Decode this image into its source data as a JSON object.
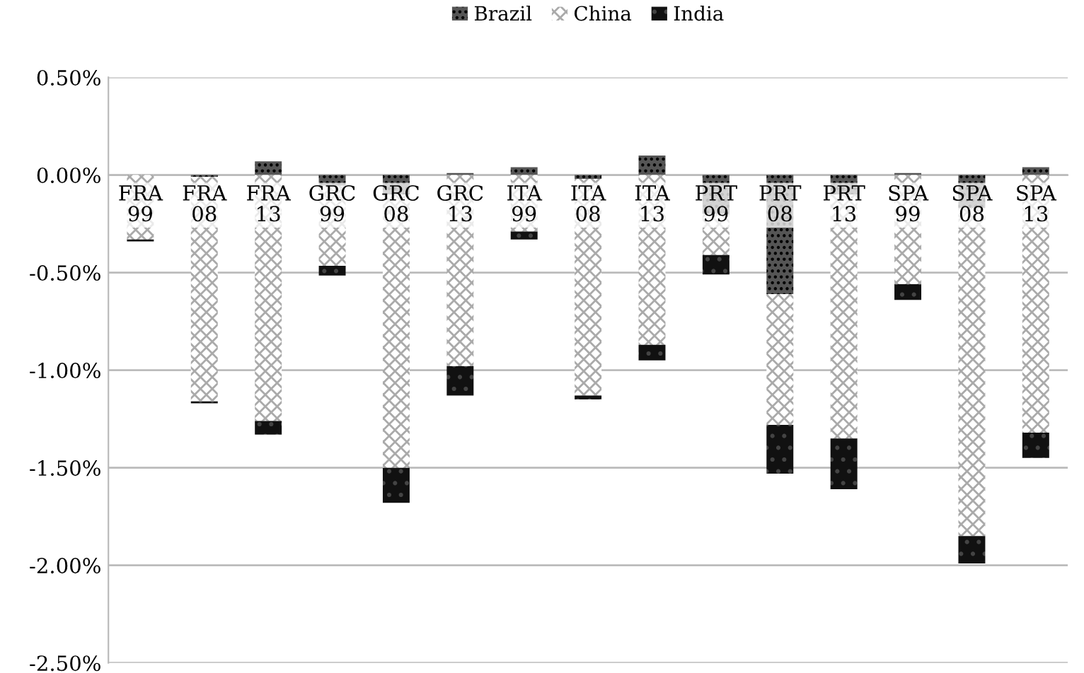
{
  "chart_data": {
    "type": "bar",
    "stacked": true,
    "categories": [
      "FRA\n99",
      "FRA\n08",
      "FRA\n13",
      "GRC\n99",
      "GRC\n08",
      "GRC\n13",
      "ITA\n99",
      "ITA\n08",
      "ITA\n13",
      "PRT\n99",
      "PRT\n08",
      "PRT\n13",
      "SPA\n99",
      "SPA\n08",
      "SPA\n13"
    ],
    "series": [
      {
        "name": "Brazil",
        "color": "#555555",
        "values": [
          0.0,
          -0.01,
          0.07,
          -0.055,
          -0.1,
          0.01,
          0.04,
          -0.02,
          0.1,
          -0.2,
          -0.61,
          -0.1,
          0.01,
          -0.17,
          0.04
        ]
      },
      {
        "name": "China",
        "color": "#aaaaaa",
        "values": [
          -0.33,
          -1.15,
          -1.26,
          -0.41,
          -1.4,
          -0.98,
          -0.29,
          -1.11,
          -0.87,
          -0.21,
          -0.67,
          -1.25,
          -0.56,
          -1.68,
          -1.32
        ]
      },
      {
        "name": "India",
        "color": "#111111",
        "values": [
          -0.01,
          -0.01,
          -0.07,
          -0.05,
          -0.18,
          -0.15,
          -0.04,
          -0.02,
          -0.08,
          -0.1,
          -0.25,
          -0.26,
          -0.08,
          -0.14,
          -0.13
        ]
      }
    ],
    "ylim": [
      -2.5,
      0.5
    ],
    "yticks": [
      {
        "value": 0.5,
        "label": "0.50%"
      },
      {
        "value": 0,
        "label": "0.00%"
      },
      {
        "value": -0.5,
        "label": "-0.50%"
      },
      {
        "value": -1.0,
        "label": "-1.00%"
      },
      {
        "value": -1.5,
        "label": "-1.50%"
      },
      {
        "value": -2.0,
        "label": "-2.00%"
      },
      {
        "value": -2.5,
        "label": "-2.50%"
      }
    ],
    "grid": "y",
    "legend": "top"
  }
}
